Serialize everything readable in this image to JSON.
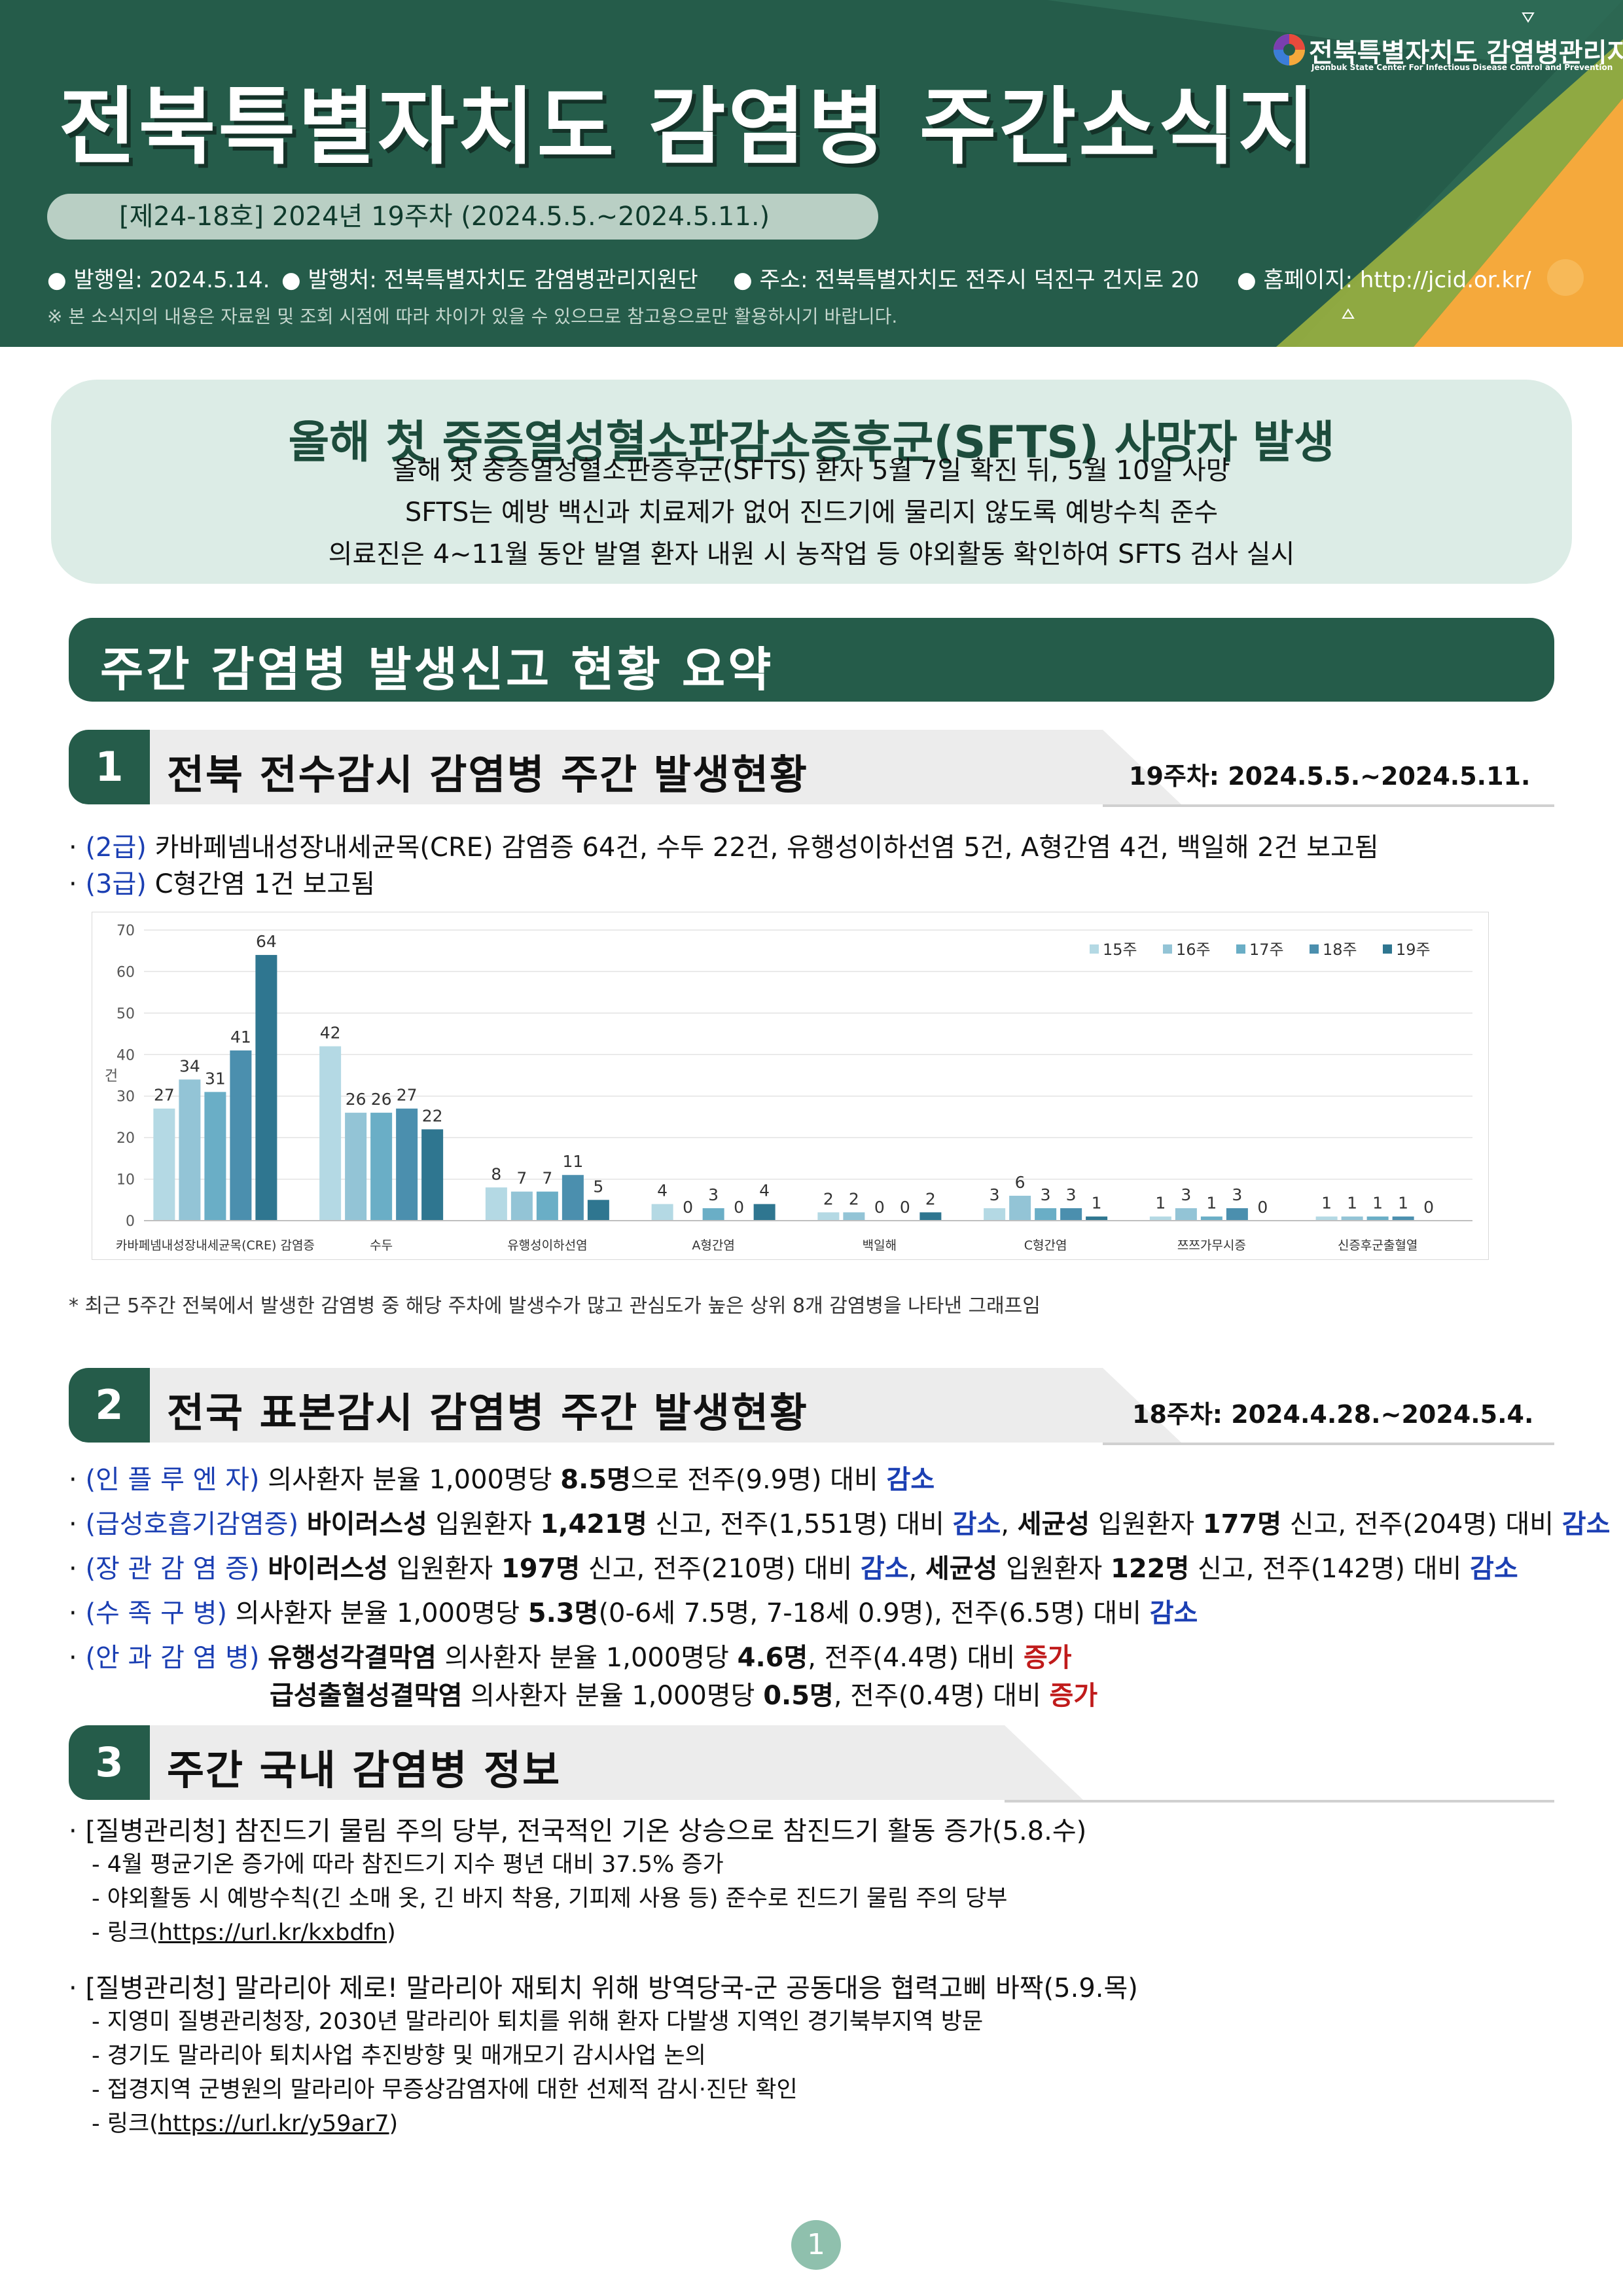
{
  "header": {
    "title": "전북특별자치도  감염병  주간소식지",
    "issue": "[제24-18호]  2024년  19주차  (2024.5.5.~2024.5.11.)",
    "meta": {
      "issued_date": "발행일: 2024.5.14.",
      "publisher": "발행처: 전북특별자치도 감염병관리지원단",
      "address": "주소: 전북특별자치도 전주시 덕진구 건지로 20",
      "homepage": "홈페이지: http://jcid.or.kr/"
    },
    "note": "※ 본 소식지의 내용은 자료원 및 조회 시점에 따라 차이가 있을 수 있으므로 참고용으로만 활용하시기 바랍니다.",
    "org_name": "전북특별자치도 감염병관리지원단",
    "org_name_en": "Jeonbuk State Center For Infectious Disease Control and Prevention",
    "colors": {
      "header_green": "#255c4a",
      "accent_orange": "#f5a93c",
      "accent_olive": "#9ab040"
    }
  },
  "banner": {
    "title": "올해 첫 중증열성혈소판감소증후군(SFTS) 사망자 발생",
    "lines": [
      "올해 첫 중증열성혈소판증후군(SFTS) 환자 5월 7일 확진 뒤, 5월 10일 사망",
      "SFTS는 예방 백신과 치료제가 없어 진드기에 물리지 않도록 예방수칙 준수",
      "의료진은 4~11월 동안 발열 환자 내원 시 농작업 등 야외활동 확인하여 SFTS 검사 실시"
    ]
  },
  "summary_title": "주간  감염병  발생신고  현황  요약",
  "section1": {
    "number": "1",
    "title": "전북  전수감시  감염병  주간  발생현황",
    "period": "19주차:  2024.5.5.~2024.5.11.",
    "lines": [
      {
        "grade": "(2급)",
        "text": "카바페넴내성장내세균목(CRE) 감염증 64건, 수두 22건, 유행성이하선염 5건, A형간염 4건, 백일해 2건 보고됨"
      },
      {
        "grade": "(3급)",
        "text": "C형간염 1건 보고됨"
      }
    ],
    "footnote": "* 최근 5주간 전북에서 발생한 감염병 중 해당 주차에 발생수가 많고 관심도가 높은 상위 8개 감염병을 나타낸 그래프임"
  },
  "chart_data": {
    "type": "bar",
    "ylabel": "건",
    "ylim": [
      0,
      70
    ],
    "yticks": [
      0,
      10,
      20,
      30,
      40,
      50,
      60,
      70
    ],
    "grid": true,
    "legend_position": "top-right",
    "categories": [
      "카바페넴내성장내세균목(CRE) 감염증",
      "수두",
      "유행성이하선염",
      "A형간염",
      "백일해",
      "C형간염",
      "쯔쯔가무시증",
      "신증후군출혈열"
    ],
    "series": [
      {
        "name": "15주",
        "color": "#b4d9e4",
        "values": [
          27,
          42,
          8,
          4,
          2,
          3,
          1,
          1
        ]
      },
      {
        "name": "16주",
        "color": "#93c4d6",
        "values": [
          34,
          26,
          7,
          0,
          2,
          6,
          3,
          1
        ]
      },
      {
        "name": "17주",
        "color": "#6aaec6",
        "values": [
          31,
          26,
          7,
          3,
          0,
          3,
          1,
          1
        ]
      },
      {
        "name": "18주",
        "color": "#4b8fae",
        "values": [
          41,
          27,
          11,
          0,
          0,
          3,
          3,
          1
        ]
      },
      {
        "name": "19주",
        "color": "#2f7690",
        "values": [
          64,
          22,
          5,
          4,
          2,
          1,
          0,
          0
        ]
      }
    ]
  },
  "section2": {
    "number": "2",
    "title": "전국  표본감시  감염병  주간  발생현황",
    "period": "18주차:  2024.4.28.~2024.5.4.",
    "items": [
      {
        "label": "(인 플 루 엔 자)",
        "parts": [
          [
            "n",
            "의사환자 분율 1,000명당 "
          ],
          [
            "b",
            "8.5명"
          ],
          [
            "n",
            "으로 전주(9.9명) 대비 "
          ],
          [
            "blue",
            "감소"
          ]
        ]
      },
      {
        "label": "(급성호흡기감염증)",
        "parts": [
          [
            "b",
            "바이러스성"
          ],
          [
            "n",
            " 입원환자 "
          ],
          [
            "b",
            "1,421명"
          ],
          [
            "n",
            " 신고, 전주(1,551명) 대비 "
          ],
          [
            "blue",
            "감소"
          ],
          [
            "n",
            ", "
          ],
          [
            "b",
            "세균성"
          ],
          [
            "n",
            " 입원환자 "
          ],
          [
            "b",
            "177명"
          ],
          [
            "n",
            " 신고, 전주(204명) 대비 "
          ],
          [
            "blue",
            "감소"
          ]
        ]
      },
      {
        "label": "(장 관 감 염 증)",
        "parts": [
          [
            "b",
            "바이러스성"
          ],
          [
            "n",
            " 입원환자 "
          ],
          [
            "b",
            "197명"
          ],
          [
            "n",
            " 신고, 전주(210명) 대비 "
          ],
          [
            "blue",
            "감소"
          ],
          [
            "n",
            ", "
          ],
          [
            "b",
            "세균성"
          ],
          [
            "n",
            " 입원환자 "
          ],
          [
            "b",
            "122명"
          ],
          [
            "n",
            " 신고, 전주(142명) 대비 "
          ],
          [
            "blue",
            "감소"
          ]
        ]
      },
      {
        "label": "(수  족  구  병)",
        "parts": [
          [
            "n",
            "의사환자 분율 1,000명당 "
          ],
          [
            "b",
            "5.3명"
          ],
          [
            "n",
            "(0-6세 7.5명, 7-18세 0.9명), 전주(6.5명) 대비 "
          ],
          [
            "blue",
            "감소"
          ]
        ]
      },
      {
        "label": "(안 과 감 염 병)",
        "parts": [
          [
            "b",
            "유행성각결막염"
          ],
          [
            "n",
            " 의사환자 분율 1,000명당 "
          ],
          [
            "b",
            "4.6명"
          ],
          [
            "n",
            ", 전주(4.4명) 대비 "
          ],
          [
            "red",
            "증가"
          ]
        ]
      },
      {
        "label": "",
        "parts": [
          [
            "b",
            "급성출혈성결막염"
          ],
          [
            "n",
            " 의사환자 분율 1,000명당 "
          ],
          [
            "b",
            "0.5명"
          ],
          [
            "n",
            ", 전주(0.4명) 대비 "
          ],
          [
            "red",
            "증가"
          ]
        ]
      }
    ]
  },
  "section3": {
    "number": "3",
    "title": "주간  국내  감염병  정보",
    "news": [
      {
        "headline": "[질병관리청]  참진드기 물림 주의 당부, 전국적인 기온 상승으로 참진드기 활동 증가(5.8.수)",
        "bullets": [
          "- 4월 평균기온 증가에 따라 참진드기 지수 평년 대비 37.5% 증가",
          "- 야외활동 시 예방수칙(긴 소매 옷, 긴 바지 착용, 기피제 사용 등) 준수로 진드기 물림 주의 당부"
        ],
        "link_prefix": "- 링크(",
        "link": "https://url.kr/kxbdfn",
        "link_suffix": ")"
      },
      {
        "headline": "[질병관리청]  말라리아 제로! 말라리아 재퇴치 위해 방역당국-군 공동대응 협력고삐 바짝(5.9.목)",
        "bullets": [
          "- 지영미 질병관리청장, 2030년 말라리아 퇴치를 위해 환자 다발생 지역인 경기북부지역 방문",
          "- 경기도 말라리아 퇴치사업 추진방향 및 매개모기 감시사업 논의",
          "- 접경지역 군병원의 말라리아 무증상감염자에 대한 선제적 감시·진단 확인"
        ],
        "link_prefix": "- 링크(",
        "link": "https://url.kr/y59ar7",
        "link_suffix": ")"
      }
    ]
  },
  "page_number": "1"
}
